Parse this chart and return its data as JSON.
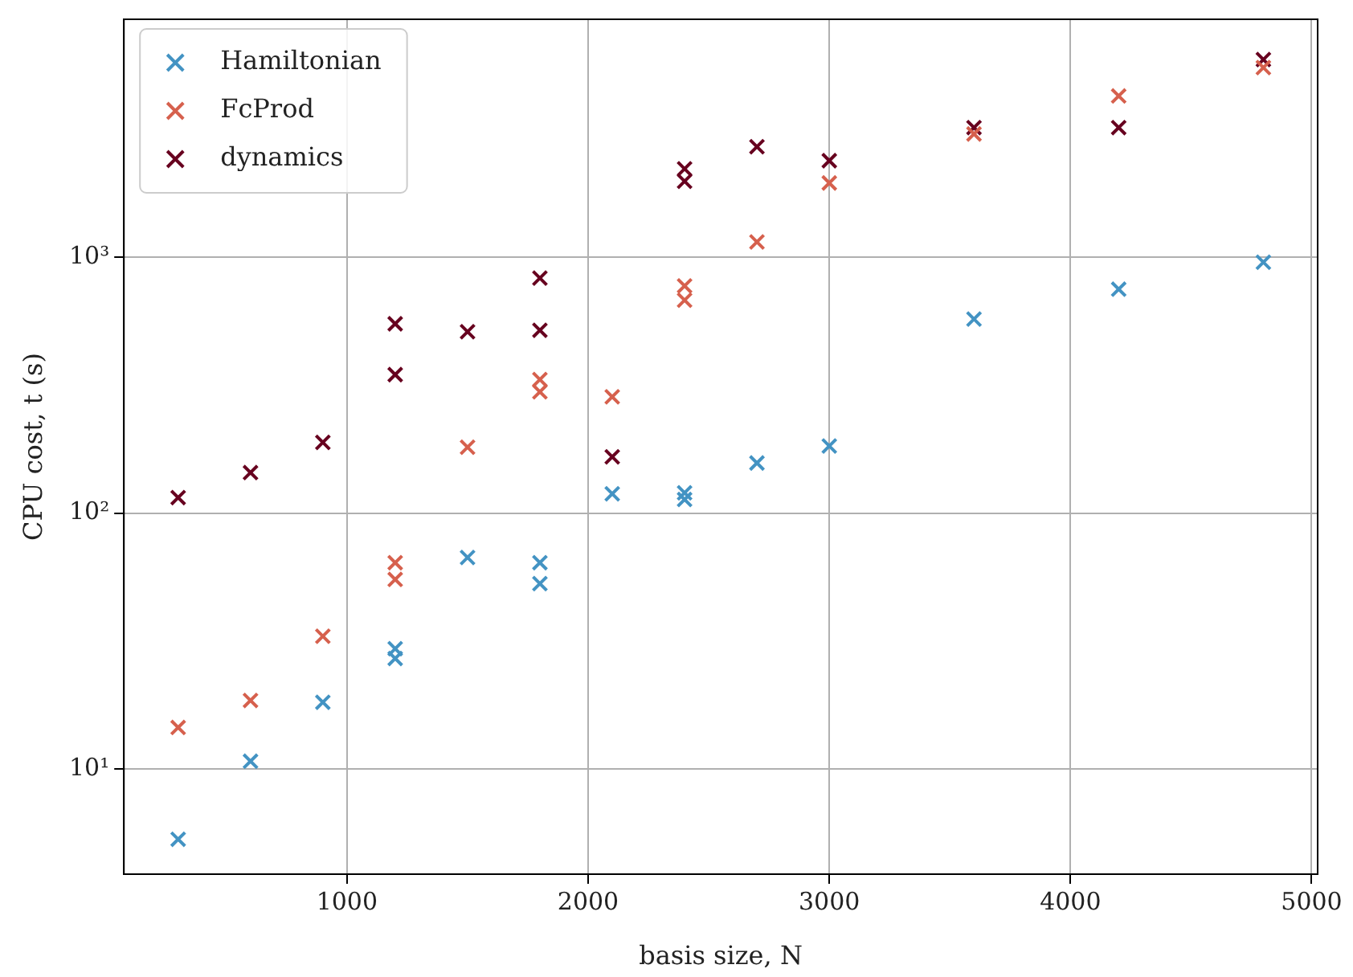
{
  "chart_data": {
    "type": "scatter",
    "xlabel": "basis size, N",
    "ylabel": "CPU cost, t (s)",
    "xlim": [
      75,
      5025
    ],
    "xticks": [
      1000,
      2000,
      3000,
      4000,
      5000
    ],
    "ylim": [
      3.87,
      8540
    ],
    "yticks": [
      {
        "value": 10,
        "label": "10¹"
      },
      {
        "value": 100,
        "label": "10²"
      },
      {
        "value": 1000,
        "label": "10³"
      }
    ],
    "log": "y",
    "grid": true,
    "legend": "top left",
    "marker": "cross",
    "series": [
      {
        "name": "Hamiltonian",
        "color": "#4393c3",
        "x": [
          300,
          600,
          900,
          1200,
          1200,
          1500,
          1800,
          1800,
          2100,
          2400,
          2400,
          2700,
          3000,
          3600,
          4200,
          4800
        ],
        "values": [
          5.3,
          10.7,
          18.2,
          29.5,
          27,
          67,
          64,
          53,
          119,
          120,
          113,
          157,
          183,
          574,
          751,
          958
        ]
      },
      {
        "name": "FcProd",
        "color": "#d6604d",
        "x": [
          300,
          600,
          900,
          1200,
          1200,
          1500,
          1800,
          1800,
          2100,
          2400,
          2400,
          2700,
          3000,
          3600,
          4200,
          4800
        ],
        "values": [
          14.5,
          18.5,
          33,
          64,
          55,
          181,
          333,
          298,
          285,
          774,
          680,
          1150,
          1955,
          3040,
          4280,
          5530
        ]
      },
      {
        "name": "dynamics",
        "color": "#67001f",
        "x": [
          300,
          600,
          900,
          1200,
          1200,
          1500,
          1800,
          1800,
          2100,
          2400,
          2400,
          2700,
          3000,
          3600,
          4200,
          4800
        ],
        "values": [
          115,
          144,
          189,
          550,
          348,
          512,
          830,
          519,
          166,
          2220,
          1985,
          2710,
          2390,
          3220,
          3220,
          5940
        ]
      }
    ]
  }
}
